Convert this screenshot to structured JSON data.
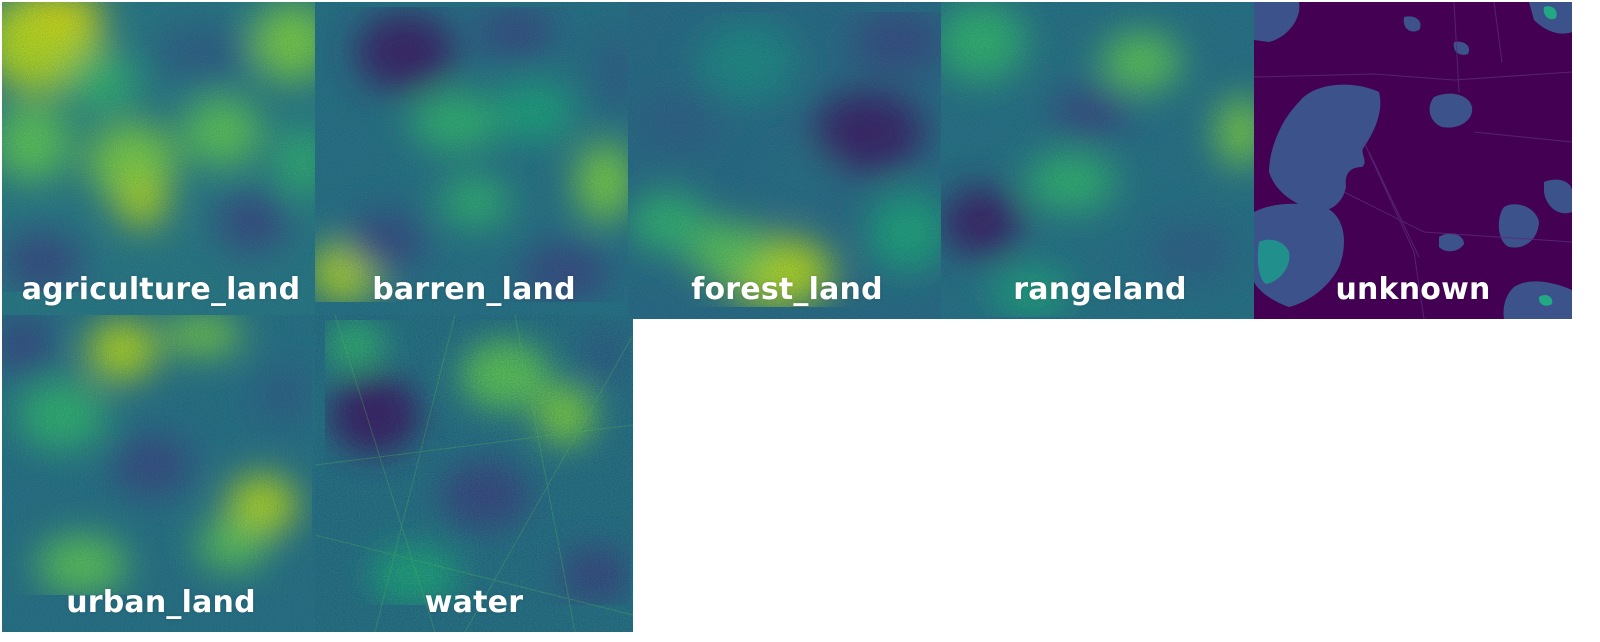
{
  "panels": [
    {
      "label": "agriculture_land",
      "colormap": "viridis"
    },
    {
      "label": "barren_land",
      "colormap": "viridis"
    },
    {
      "label": "forest_land",
      "colormap": "viridis"
    },
    {
      "label": "rangeland",
      "colormap": "viridis"
    },
    {
      "label": "unknown",
      "colormap": "viridis"
    },
    {
      "label": "urban_land",
      "colormap": "viridis"
    },
    {
      "label": "water",
      "colormap": "viridis"
    }
  ],
  "colors": {
    "viridis_low": "#440154",
    "viridis_mid_low": "#3b528b",
    "viridis_mid": "#21908d",
    "viridis_mid_high": "#5dc963",
    "viridis_high": "#fde725",
    "divider": "#ffffff"
  }
}
